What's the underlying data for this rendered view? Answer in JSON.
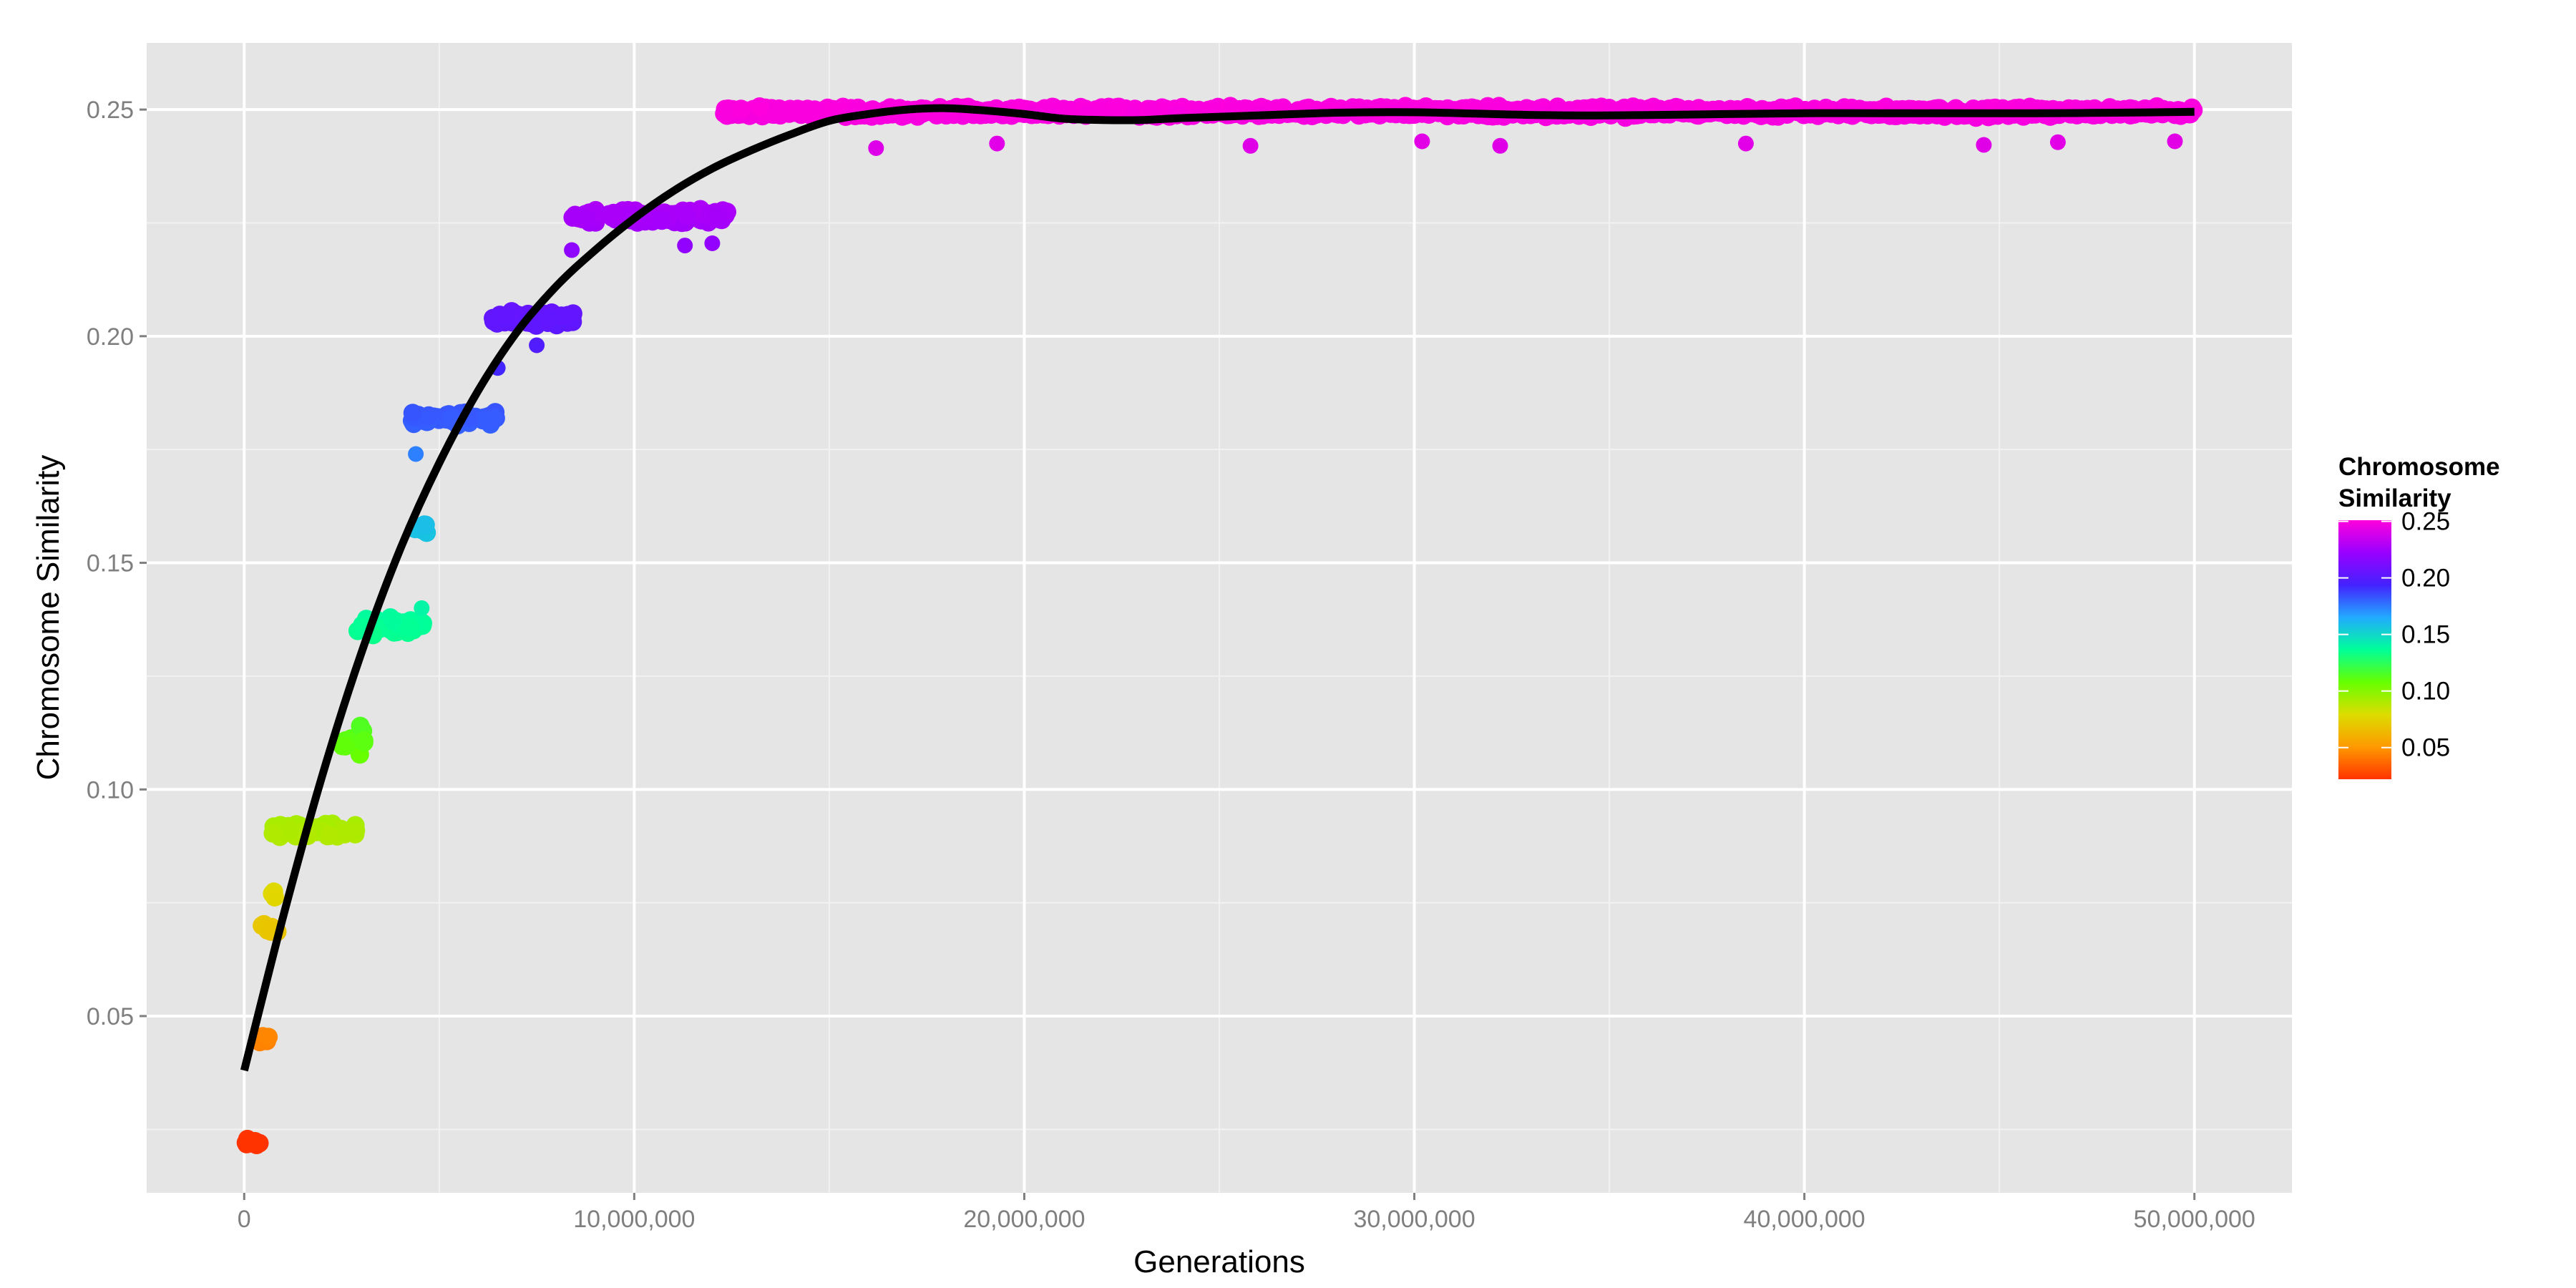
{
  "chart_data": {
    "type": "scatter",
    "title": "",
    "xlabel": "Generations",
    "ylabel": "Chromosome Similarity",
    "xlim": [
      -2500000,
      52500000
    ],
    "ylim": [
      0.011,
      0.2647
    ],
    "x_ticks": [
      0,
      10000000,
      20000000,
      30000000,
      40000000,
      50000000
    ],
    "x_tick_labels": [
      "0",
      "10,000,000",
      "20,000,000",
      "30,000,000",
      "40,000,000",
      "50,000,000"
    ],
    "y_ticks": [
      0.05,
      0.1,
      0.15,
      0.2,
      0.25
    ],
    "y_tick_labels": [
      "0.05",
      "0.10",
      "0.15",
      "0.20",
      "0.25"
    ],
    "grid": true,
    "legend": {
      "title_lines": [
        "Chromosome",
        "Similarity"
      ],
      "position": "right",
      "ticks": [
        0.25,
        0.2,
        0.15,
        0.1,
        0.05
      ],
      "tick_labels": [
        "0.25",
        "0.20",
        "0.15",
        "0.10",
        "0.05"
      ],
      "range": [
        0.022,
        0.251
      ],
      "colors": [
        "#ff3300",
        "#ff9900",
        "#dddd00",
        "#66ff00",
        "#00ff99",
        "#22aaff",
        "#4422ff",
        "#9900ff",
        "#ff00dd"
      ]
    },
    "point_clusters": [
      {
        "x_range": [
          0,
          400000
        ],
        "y": 0.022,
        "spread": 0.0008,
        "n": 10
      },
      {
        "x_range": [
          300000,
          700000
        ],
        "y": 0.045,
        "spread": 0.001,
        "n": 8
      },
      {
        "x_range": [
          350000,
          900000
        ],
        "y": 0.069,
        "spread": 0.0015,
        "n": 8
      },
      {
        "x_range": [
          700000,
          900000
        ],
        "y": 0.077,
        "spread": 0.001,
        "n": 3
      },
      {
        "x_range": [
          700000,
          2900000
        ],
        "y": 0.091,
        "spread": 0.0012,
        "n": 70
      },
      {
        "x_range": [
          2400000,
          3100000
        ],
        "y": 0.111,
        "spread": 0.003,
        "n": 15
      },
      {
        "x_range": [
          2900000,
          4600000
        ],
        "y": 0.136,
        "spread": 0.0015,
        "n": 55
      },
      {
        "x_range": [
          4300000,
          4700000
        ],
        "y": 0.157,
        "spread": 0.002,
        "n": 5
      },
      {
        "x_range": [
          4300000,
          6500000
        ],
        "y": 0.182,
        "spread": 0.0012,
        "n": 75
      },
      {
        "x_range": [
          6300000,
          8500000
        ],
        "y": 0.204,
        "spread": 0.0012,
        "n": 70
      },
      {
        "x_range": [
          8300000,
          12400000
        ],
        "y": 0.2265,
        "spread": 0.0012,
        "n": 130
      },
      {
        "x_range": [
          12300000,
          50000000
        ],
        "y": 0.2495,
        "spread": 0.0009,
        "n": 1500
      }
    ],
    "point_outliers": [
      {
        "x": 16200000,
        "y": 0.2415
      },
      {
        "x": 19300000,
        "y": 0.2425
      },
      {
        "x": 25800000,
        "y": 0.242
      },
      {
        "x": 30200000,
        "y": 0.243
      },
      {
        "x": 32200000,
        "y": 0.242
      },
      {
        "x": 38500000,
        "y": 0.2425
      },
      {
        "x": 44600000,
        "y": 0.2422
      },
      {
        "x": 46500000,
        "y": 0.2428
      },
      {
        "x": 49500000,
        "y": 0.243
      },
      {
        "x": 8400000,
        "y": 0.219
      },
      {
        "x": 11300000,
        "y": 0.22
      },
      {
        "x": 12000000,
        "y": 0.2205
      },
      {
        "x": 7500000,
        "y": 0.198
      },
      {
        "x": 6500000,
        "y": 0.193
      },
      {
        "x": 4400000,
        "y": 0.174
      },
      {
        "x": 4550000,
        "y": 0.14
      }
    ],
    "smooth_line": {
      "x": [
        0,
        1000000,
        2000000,
        3000000,
        4000000,
        5000000,
        6000000,
        7000000,
        8000000,
        9000000,
        10000000,
        11000000,
        12000000,
        13000000,
        14000000,
        15000000,
        16000000,
        17000000,
        18000000,
        19000000,
        20000000,
        21000000,
        22000000,
        23000000,
        24000000,
        26000000,
        28000000,
        30000000,
        32000000,
        34000000,
        36000000,
        38000000,
        40000000,
        42000000,
        44000000,
        46000000,
        48000000,
        50000000
      ],
      "y": [
        0.038,
        0.072,
        0.103,
        0.13,
        0.153,
        0.172,
        0.188,
        0.201,
        0.211,
        0.219,
        0.226,
        0.232,
        0.237,
        0.241,
        0.2445,
        0.2475,
        0.249,
        0.25,
        0.2503,
        0.2498,
        0.249,
        0.248,
        0.2477,
        0.2477,
        0.2481,
        0.2487,
        0.2493,
        0.2494,
        0.249,
        0.2487,
        0.2488,
        0.249,
        0.2492,
        0.2492,
        0.2492,
        0.2492,
        0.2493,
        0.2495
      ]
    }
  }
}
